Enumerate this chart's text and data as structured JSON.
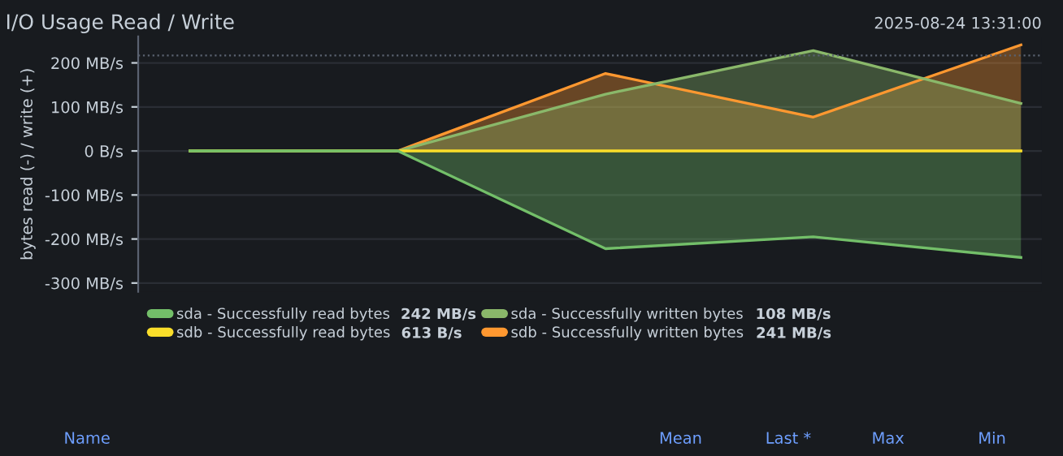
{
  "chart_data": {
    "type": "area",
    "title": "I/O Usage Read / Write",
    "ylabel": "bytes read (-) / write (+)",
    "categories": [
      null,
      null,
      null,
      null,
      null
    ],
    "series": [
      {
        "name": "sda - Successfully read bytes",
        "color": "#73bf69",
        "values": [
          0,
          0,
          -222,
          -195,
          -242
        ]
      },
      {
        "name": "sdb - Successfully read bytes",
        "type": "line",
        "color": "#fade2a",
        "values": [
          0,
          0,
          0,
          0,
          0
        ]
      },
      {
        "name": "sda - Successfully written bytes",
        "color": "#8ab86a",
        "values": [
          0,
          0,
          129,
          228,
          108
        ]
      },
      {
        "name": "sdb - Successfully written bytes",
        "color": "#ff9830",
        "values": [
          0,
          0,
          176,
          77,
          241
        ]
      }
    ],
    "ylim": [
      -320,
      260
    ],
    "yticks": [
      {
        "value": -300,
        "label": "-300 MB/s"
      },
      {
        "value": -200,
        "label": "-200 MB/s"
      },
      {
        "value": -100,
        "label": "-100 MB/s"
      },
      {
        "value": 0,
        "label": "0 B/s"
      },
      {
        "value": 100,
        "label": "100 MB/s"
      },
      {
        "value": 200,
        "label": "200 MB/s"
      }
    ],
    "ref_lines": [
      {
        "axis": "y",
        "value": 217,
        "label": null,
        "color": "#5a6270",
        "line_style": "dotted"
      }
    ],
    "grid": "y",
    "legend": "bottom",
    "tick_labels": "y",
    "marker": "none",
    "annotations": [
      "2025-08-24 13:31:00",
      "242 MB/s",
      "613 B/s",
      "108 MB/s",
      "241 MB/s",
      "Name",
      "Mean",
      "Last *",
      "Max",
      "Min"
    ]
  }
}
